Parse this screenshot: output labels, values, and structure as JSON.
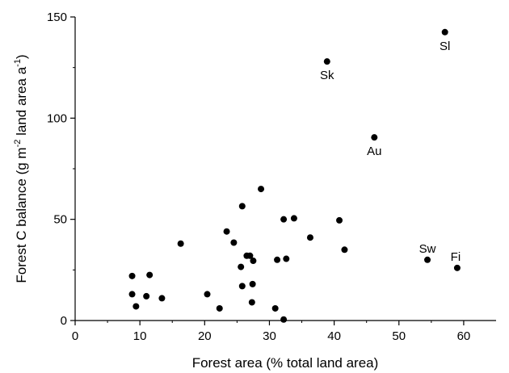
{
  "chart_data": {
    "type": "scatter",
    "title": "",
    "xlabel": "Forest area (% total land area)",
    "ylabel": {
      "base1": "Forest C balance (g m",
      "sup1": "-2",
      "base2": " land area a",
      "sup2": "-1",
      "base3": ")"
    },
    "xlim": [
      0,
      65
    ],
    "ylim": [
      0,
      150
    ],
    "xticks": [
      0,
      10,
      20,
      30,
      40,
      50,
      60
    ],
    "yticks": [
      0,
      50,
      100,
      150
    ],
    "grid": false,
    "legend": "none",
    "marker_color": "#000000",
    "points": [
      {
        "x": 8.8,
        "y": 22.0
      },
      {
        "x": 8.8,
        "y": 13.0
      },
      {
        "x": 9.4,
        "y": 7.0
      },
      {
        "x": 11.0,
        "y": 12.0
      },
      {
        "x": 11.5,
        "y": 22.5
      },
      {
        "x": 13.4,
        "y": 11.0
      },
      {
        "x": 16.3,
        "y": 38.0
      },
      {
        "x": 20.4,
        "y": 13.0
      },
      {
        "x": 22.3,
        "y": 6.0
      },
      {
        "x": 23.4,
        "y": 44.0
      },
      {
        "x": 24.5,
        "y": 38.5
      },
      {
        "x": 25.6,
        "y": 26.5
      },
      {
        "x": 25.8,
        "y": 56.5
      },
      {
        "x": 25.8,
        "y": 17.0
      },
      {
        "x": 26.5,
        "y": 32.0
      },
      {
        "x": 27.0,
        "y": 32.0
      },
      {
        "x": 27.3,
        "y": 9.0
      },
      {
        "x": 27.4,
        "y": 18.0
      },
      {
        "x": 27.5,
        "y": 29.5
      },
      {
        "x": 28.7,
        "y": 65.0
      },
      {
        "x": 30.9,
        "y": 6.0
      },
      {
        "x": 31.2,
        "y": 30.0
      },
      {
        "x": 32.2,
        "y": 50.0
      },
      {
        "x": 32.2,
        "y": 0.5
      },
      {
        "x": 32.6,
        "y": 30.5
      },
      {
        "x": 33.8,
        "y": 50.5
      },
      {
        "x": 36.3,
        "y": 41.0
      },
      {
        "x": 40.8,
        "y": 49.5
      },
      {
        "x": 41.6,
        "y": 35.0
      },
      {
        "x": 38.9,
        "y": 128.0,
        "label": "Sk"
      },
      {
        "x": 57.1,
        "y": 142.5,
        "label": "Sl"
      },
      {
        "x": 46.2,
        "y": 90.5,
        "label": "Au"
      },
      {
        "x": 54.4,
        "y": 30.0,
        "label": "Sw"
      },
      {
        "x": 59.0,
        "y": 26.0,
        "label": "Fi"
      }
    ]
  }
}
